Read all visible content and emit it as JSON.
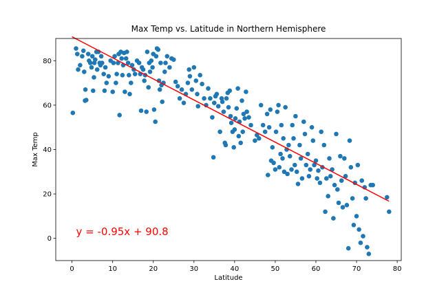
{
  "chart_data": {
    "type": "scatter",
    "title": "Max Temp vs. Latitude in Northern Hemisphere",
    "xlabel": "Latitude",
    "ylabel": "Max Temp",
    "xlim": [
      -4,
      81
    ],
    "ylim": [
      -10,
      90
    ],
    "xticks": [
      0,
      10,
      20,
      30,
      40,
      50,
      60,
      70,
      80
    ],
    "yticks": [
      0,
      20,
      40,
      60,
      80
    ],
    "grid": false,
    "colors": {
      "points": "#1f77b4",
      "regression": "#ff0000",
      "annotation": "#ff0000"
    },
    "regression": {
      "slope": -0.95,
      "intercept": 90.8,
      "x_range": [
        0,
        78
      ]
    },
    "annotation": {
      "text": "y = -0.95x + 90.8",
      "x": 1,
      "y": 1.5
    },
    "series": [
      {
        "points": [
          [
            0.2,
            56.5
          ],
          [
            1,
            85.5
          ],
          [
            1.3,
            83
          ],
          [
            1.5,
            76
          ],
          [
            2,
            78
          ],
          [
            2.5,
            82
          ],
          [
            2.8,
            84.5
          ],
          [
            3,
            75
          ],
          [
            3.2,
            62
          ],
          [
            3.3,
            67
          ],
          [
            3.5,
            62.3
          ],
          [
            4,
            83
          ],
          [
            4.2,
            80
          ],
          [
            4.5,
            79
          ],
          [
            4.8,
            77
          ],
          [
            5,
            82
          ],
          [
            5.2,
            66.5
          ],
          [
            5.4,
            72.5
          ],
          [
            5.5,
            79
          ],
          [
            5.7,
            80.5
          ],
          [
            6,
            84
          ],
          [
            6.2,
            76
          ],
          [
            6.5,
            84
          ],
          [
            6.8,
            79
          ],
          [
            7,
            78
          ],
          [
            7.2,
            82
          ],
          [
            7.4,
            79
          ],
          [
            7.8,
            74
          ],
          [
            8,
            66.5
          ],
          [
            8.2,
            77
          ],
          [
            8.5,
            70
          ],
          [
            9,
            73
          ],
          [
            9.5,
            80
          ],
          [
            10,
            66
          ],
          [
            10.2,
            79
          ],
          [
            10.5,
            82
          ],
          [
            10.8,
            70
          ],
          [
            11,
            74
          ],
          [
            11.3,
            79
          ],
          [
            11.5,
            83
          ],
          [
            11.7,
            55.5
          ],
          [
            12,
            84
          ],
          [
            12.2,
            81
          ],
          [
            12.4,
            73.5
          ],
          [
            12.6,
            78
          ],
          [
            12.8,
            83.5
          ],
          [
            13,
            66
          ],
          [
            13.3,
            81
          ],
          [
            13.5,
            84
          ],
          [
            13.8,
            79
          ],
          [
            14,
            73.5
          ],
          [
            14.2,
            65
          ],
          [
            14.5,
            70
          ],
          [
            14.8,
            78
          ],
          [
            15.2,
            76
          ],
          [
            15.5,
            74
          ],
          [
            16,
            80
          ],
          [
            16.5,
            79
          ],
          [
            16.8,
            74
          ],
          [
            17,
            57.5
          ],
          [
            17.2,
            77
          ],
          [
            17.5,
            76
          ],
          [
            17.8,
            71
          ],
          [
            18,
            73.5
          ],
          [
            18.3,
            57
          ],
          [
            18.5,
            84
          ],
          [
            18.8,
            68
          ],
          [
            19,
            79
          ],
          [
            19.2,
            75
          ],
          [
            19.5,
            80
          ],
          [
            19.8,
            77
          ],
          [
            20,
            83
          ],
          [
            20.2,
            58
          ],
          [
            20.5,
            52.5
          ],
          [
            20.7,
            82
          ],
          [
            20.9,
            85.5
          ],
          [
            21.2,
            85
          ],
          [
            21.4,
            71
          ],
          [
            21.6,
            67
          ],
          [
            21.8,
            79
          ],
          [
            22,
            69
          ],
          [
            22.2,
            61.5
          ],
          [
            22.5,
            70
          ],
          [
            22.8,
            75
          ],
          [
            23,
            79
          ],
          [
            23.4,
            82
          ],
          [
            24,
            77
          ],
          [
            24.5,
            81
          ],
          [
            25,
            80.5
          ],
          [
            25.5,
            70.5
          ],
          [
            26,
            68.5
          ],
          [
            26.5,
            63
          ],
          [
            27,
            67
          ],
          [
            27.5,
            61
          ],
          [
            28,
            65
          ],
          [
            28.5,
            70
          ],
          [
            28.8,
            76
          ],
          [
            29,
            73
          ],
          [
            29.5,
            67
          ],
          [
            30,
            77
          ],
          [
            30.5,
            71
          ],
          [
            30.8,
            65
          ],
          [
            31,
            59.5
          ],
          [
            31.5,
            73.5
          ],
          [
            32,
            69.5
          ],
          [
            32.5,
            63
          ],
          [
            33,
            60
          ],
          [
            33.5,
            67.5
          ],
          [
            34,
            63
          ],
          [
            34.5,
            54.5
          ],
          [
            34.8,
            36.5
          ],
          [
            35,
            61
          ],
          [
            35.3,
            64
          ],
          [
            35.6,
            65
          ],
          [
            36,
            59.5
          ],
          [
            36.4,
            48
          ],
          [
            36.8,
            63
          ],
          [
            37,
            61.5
          ],
          [
            37.3,
            57
          ],
          [
            37.6,
            43
          ],
          [
            37.8,
            42
          ],
          [
            38,
            63
          ],
          [
            38.3,
            65.5
          ],
          [
            38.5,
            59
          ],
          [
            38.8,
            66.5
          ],
          [
            39,
            55
          ],
          [
            39.2,
            52
          ],
          [
            39.5,
            48
          ],
          [
            39.8,
            41
          ],
          [
            40,
            49
          ],
          [
            40.2,
            54
          ],
          [
            40.5,
            58.5
          ],
          [
            40.8,
            67.5
          ],
          [
            41,
            46
          ],
          [
            41.2,
            52.5
          ],
          [
            41.5,
            43
          ],
          [
            41.8,
            62
          ],
          [
            42,
            48
          ],
          [
            42.2,
            56
          ],
          [
            42.5,
            54
          ],
          [
            42.8,
            66
          ],
          [
            43,
            57
          ],
          [
            43.5,
            54.5
          ],
          [
            44,
            51
          ],
          [
            45,
            44
          ],
          [
            45.5,
            46.5
          ],
          [
            46,
            45
          ],
          [
            46.5,
            60
          ],
          [
            47,
            51
          ],
          [
            47.5,
            48
          ],
          [
            48,
            56
          ],
          [
            48.2,
            28.5
          ],
          [
            48.5,
            50
          ],
          [
            48.8,
            58
          ],
          [
            49,
            35
          ],
          [
            49.3,
            41
          ],
          [
            49.6,
            34
          ],
          [
            50,
            31
          ],
          [
            50.2,
            48
          ],
          [
            50.5,
            57
          ],
          [
            50.8,
            60
          ],
          [
            51,
            32
          ],
          [
            51.3,
            38
          ],
          [
            51.5,
            51
          ],
          [
            51.8,
            36
          ],
          [
            52,
            45
          ],
          [
            52.2,
            30
          ],
          [
            52.5,
            59
          ],
          [
            52.8,
            40
          ],
          [
            53,
            29
          ],
          [
            53.3,
            42
          ],
          [
            53.6,
            37
          ],
          [
            54,
            31
          ],
          [
            54.2,
            51
          ],
          [
            54.5,
            45
          ],
          [
            54.8,
            33
          ],
          [
            55,
            55
          ],
          [
            55.3,
            30
          ],
          [
            55.6,
            24.5
          ],
          [
            56,
            42
          ],
          [
            56.3,
            36
          ],
          [
            56.6,
            27
          ],
          [
            57,
            52.5
          ],
          [
            57.3,
            47
          ],
          [
            57.6,
            33
          ],
          [
            58,
            38
          ],
          [
            58.3,
            28
          ],
          [
            58.6,
            31
          ],
          [
            59,
            50
          ],
          [
            59.3,
            44
          ],
          [
            59.6,
            33
          ],
          [
            60,
            35
          ],
          [
            60.3,
            27
          ],
          [
            60.6,
            30.5
          ],
          [
            61,
            25
          ],
          [
            61.3,
            48
          ],
          [
            61.6,
            32
          ],
          [
            62,
            42
          ],
          [
            62.3,
            12
          ],
          [
            62.6,
            27
          ],
          [
            63,
            19
          ],
          [
            63.3,
            36
          ],
          [
            63.6,
            28
          ],
          [
            64,
            31
          ],
          [
            64.3,
            9
          ],
          [
            64.6,
            24
          ],
          [
            65,
            47
          ],
          [
            65.3,
            22
          ],
          [
            65.6,
            16
          ],
          [
            66,
            37
          ],
          [
            66.3,
            26
          ],
          [
            66.6,
            14
          ],
          [
            67,
            36
          ],
          [
            67.3,
            28
          ],
          [
            67.6,
            15
          ],
          [
            68,
            -4.5
          ],
          [
            68.3,
            44
          ],
          [
            68.6,
            32
          ],
          [
            69,
            18
          ],
          [
            69.3,
            6
          ],
          [
            69.6,
            25
          ],
          [
            70,
            10
          ],
          [
            70.3,
            33
          ],
          [
            70.6,
            4
          ],
          [
            71,
            -2
          ],
          [
            71.3,
            26
          ],
          [
            71.6,
            1
          ],
          [
            72,
            23
          ],
          [
            72.3,
            18
          ],
          [
            72.6,
            -4
          ],
          [
            73,
            -7
          ],
          [
            73.5,
            24
          ],
          [
            74,
            24
          ],
          [
            77.5,
            18.5
          ],
          [
            78,
            12
          ]
        ]
      }
    ]
  }
}
